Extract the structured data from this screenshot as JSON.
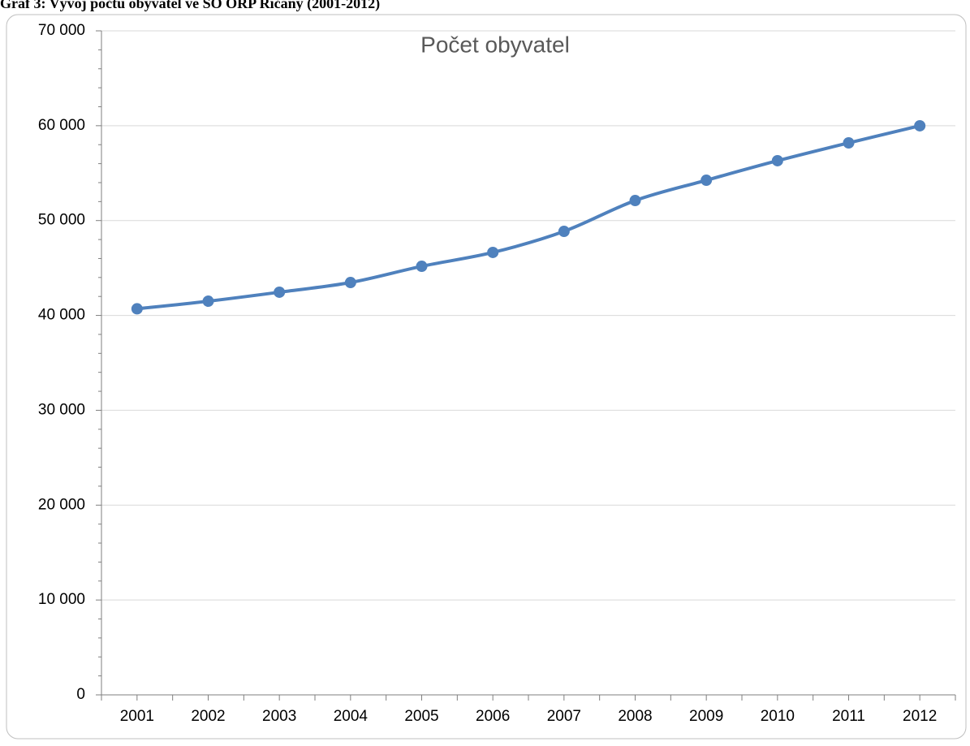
{
  "heading": "Graf 3: Vývoj počtu obyvatel ve SO ORP Říčany (2001-2012)",
  "chart_data": {
    "type": "line",
    "title": "Počet obyvatel",
    "categories": [
      "2001",
      "2002",
      "2003",
      "2004",
      "2005",
      "2006",
      "2007",
      "2008",
      "2009",
      "2010",
      "2011",
      "2012"
    ],
    "values": [
      40700,
      41500,
      42450,
      43470,
      45180,
      46640,
      48860,
      52110,
      54250,
      56310,
      58190,
      59990
    ],
    "color": "#4f81bd",
    "ylim": [
      0,
      70000
    ],
    "yticks": [
      0,
      {
        "value": 10000,
        "label": "10 000"
      },
      {
        "value": 20000,
        "label": "20 000"
      },
      {
        "value": 30000,
        "label": "30 000"
      },
      {
        "value": 40000,
        "label": "40 000"
      },
      {
        "value": 50000,
        "label": "50 000"
      },
      {
        "value": 60000,
        "label": "60 000"
      },
      {
        "value": 70000,
        "label": "70 000"
      }
    ],
    "grid": true
  }
}
